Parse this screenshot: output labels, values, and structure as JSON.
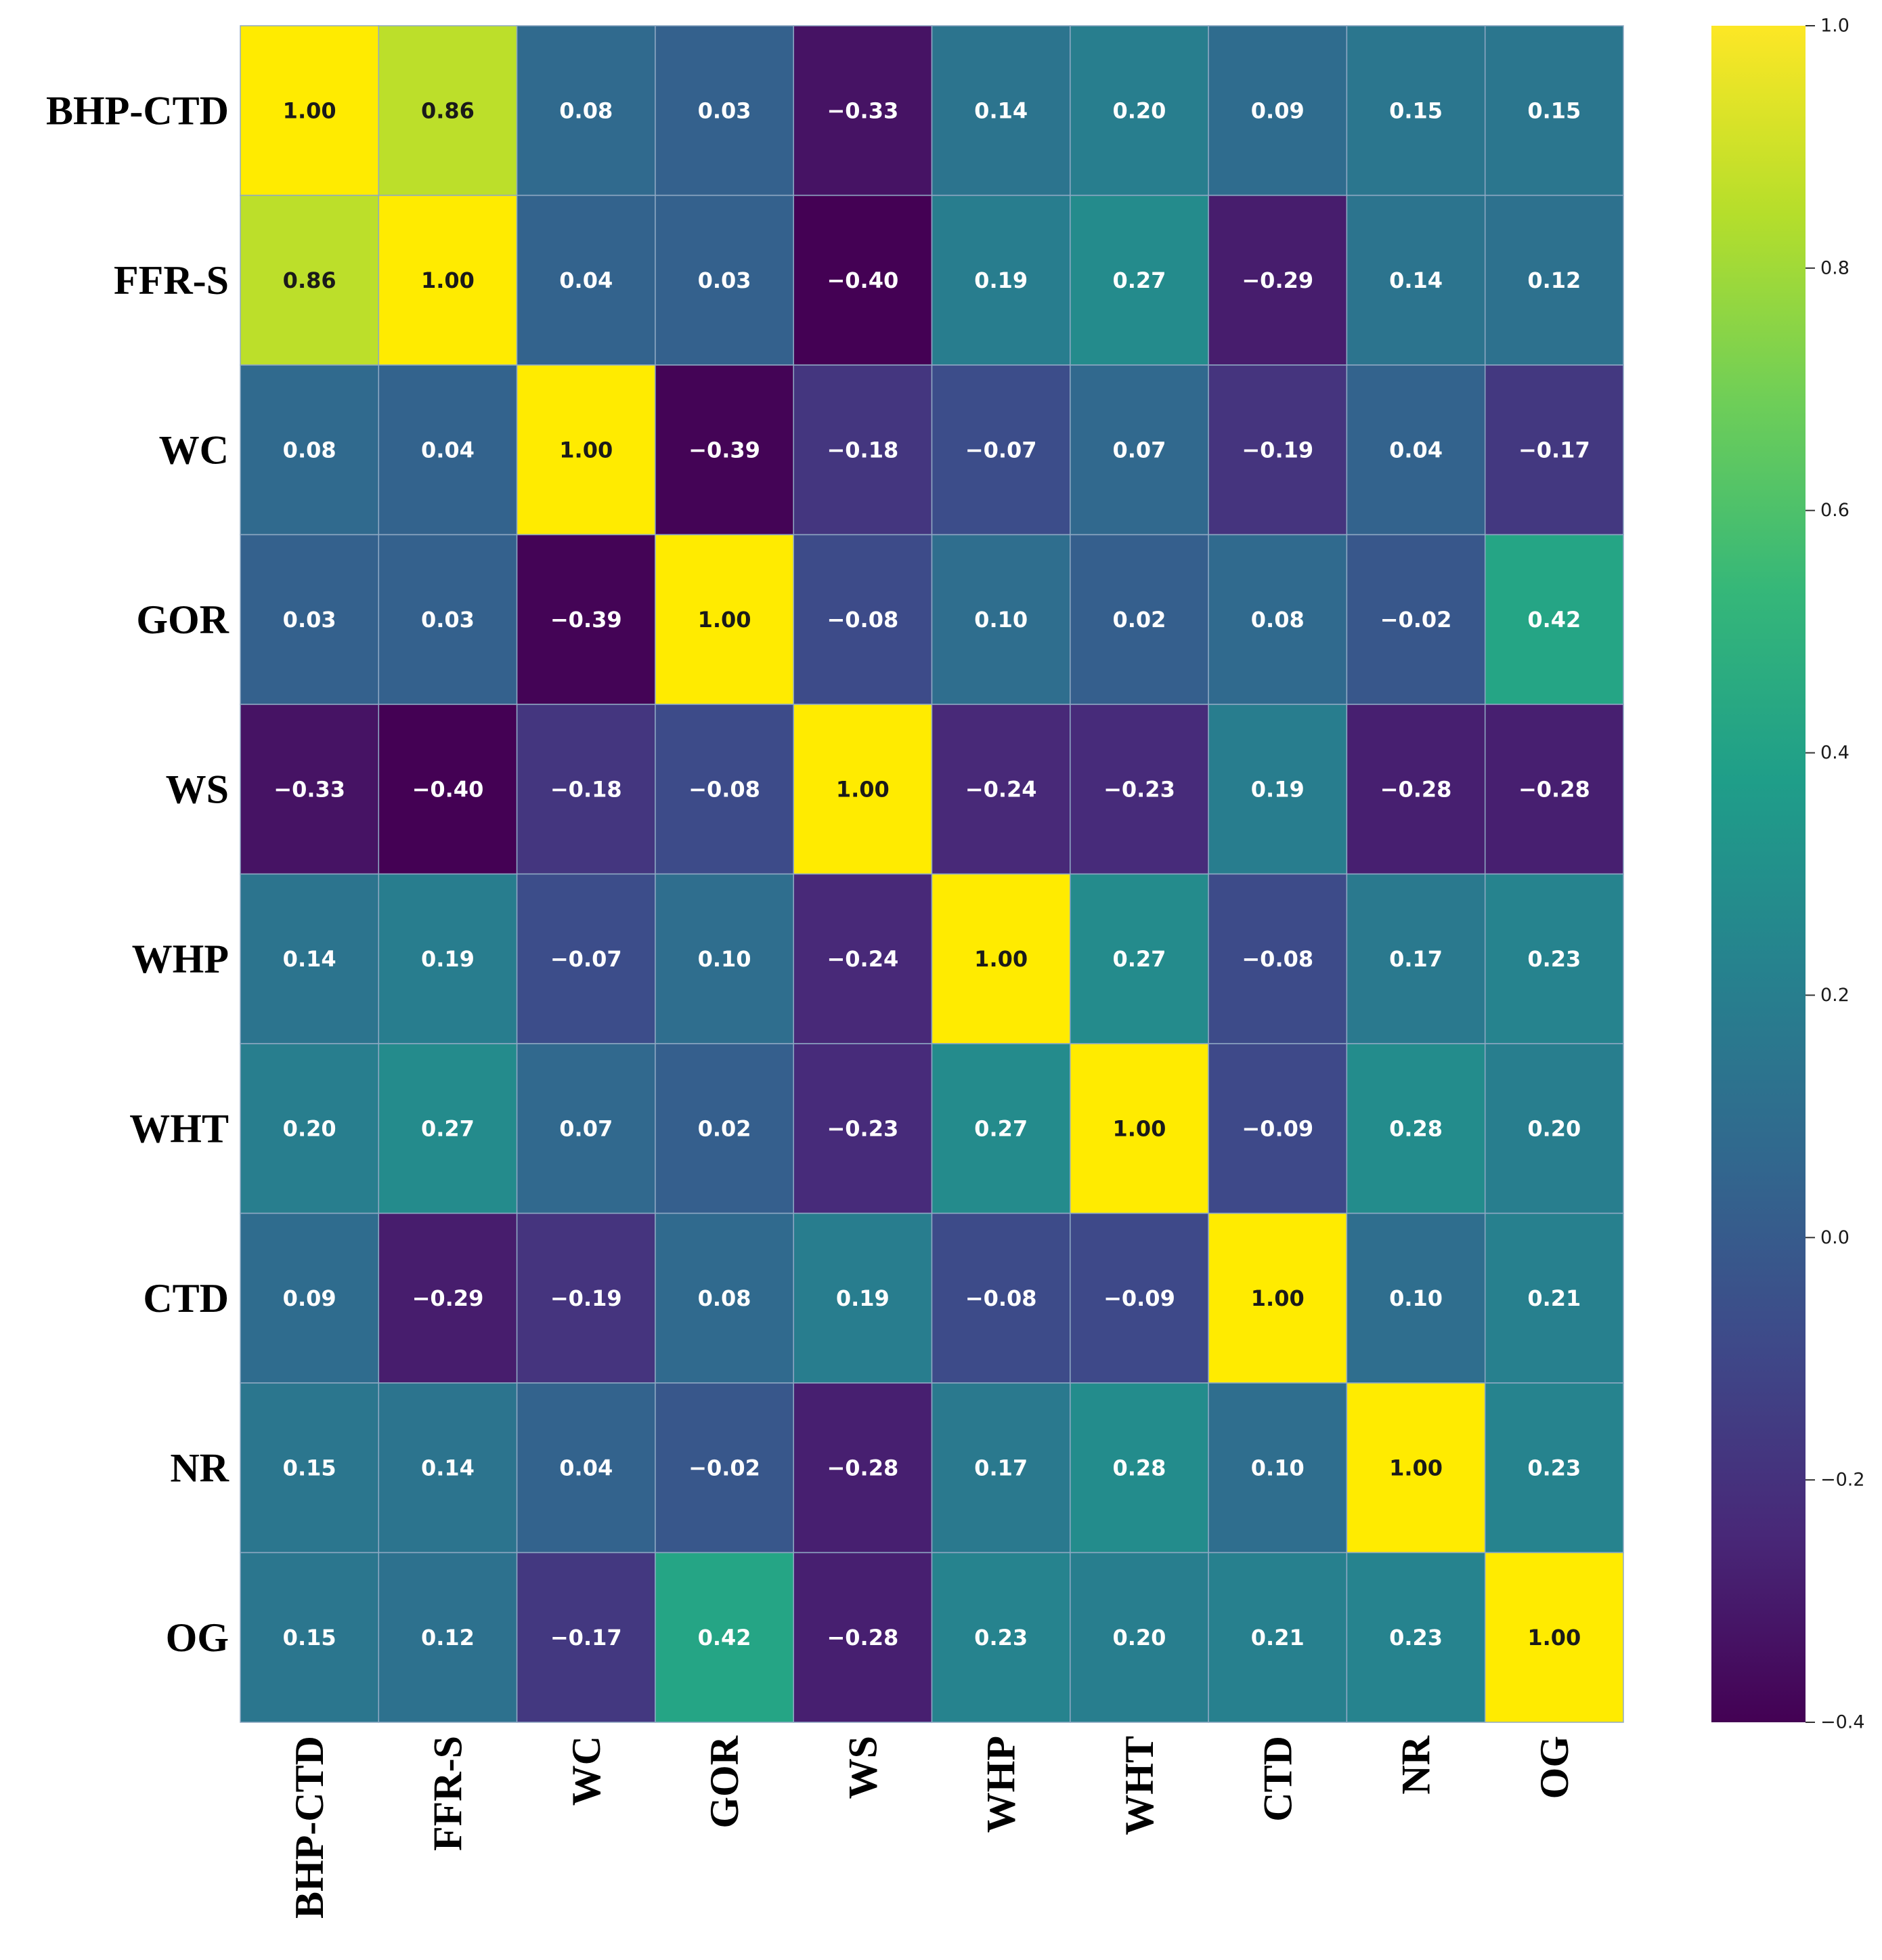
{
  "chart_data": {
    "type": "heatmap",
    "title": "",
    "labels": [
      "BHP-CTD",
      "FFR-S",
      "WC",
      "GOR",
      "WS",
      "WHP",
      "WHT",
      "CTD",
      "NR",
      "OG"
    ],
    "matrix": [
      [
        1.0,
        0.86,
        0.08,
        0.03,
        -0.33,
        0.14,
        0.2,
        0.09,
        0.15,
        0.15
      ],
      [
        0.86,
        1.0,
        0.04,
        0.03,
        -0.4,
        0.19,
        0.27,
        -0.29,
        0.14,
        0.12
      ],
      [
        0.08,
        0.04,
        1.0,
        -0.39,
        -0.18,
        -0.07,
        0.07,
        -0.19,
        0.04,
        -0.17
      ],
      [
        0.03,
        0.03,
        -0.39,
        1.0,
        -0.08,
        0.1,
        0.02,
        0.08,
        -0.02,
        0.42
      ],
      [
        -0.33,
        -0.4,
        -0.18,
        -0.08,
        1.0,
        -0.24,
        -0.23,
        0.19,
        -0.28,
        -0.28
      ],
      [
        0.14,
        0.19,
        -0.07,
        0.1,
        -0.24,
        1.0,
        0.27,
        -0.08,
        0.17,
        0.23
      ],
      [
        0.2,
        0.27,
        0.07,
        0.02,
        -0.23,
        0.27,
        1.0,
        -0.09,
        0.28,
        0.2
      ],
      [
        0.09,
        -0.29,
        -0.19,
        0.08,
        0.19,
        -0.08,
        -0.09,
        1.0,
        0.1,
        0.21
      ],
      [
        0.15,
        0.14,
        0.04,
        -0.02,
        -0.28,
        0.17,
        0.28,
        0.1,
        1.0,
        0.23
      ],
      [
        0.15,
        0.12,
        -0.17,
        0.42,
        -0.28,
        0.23,
        0.2,
        0.21,
        0.23,
        1.0
      ]
    ],
    "value_format": "2 decimals, minus sign as −",
    "colormap": "viridis",
    "colorbar": {
      "range": [
        -0.4,
        1.0
      ],
      "ticks": [
        1.0,
        0.8,
        0.6,
        0.4,
        0.2,
        0.0,
        -0.2,
        -0.4
      ],
      "tick_labels": [
        "1.0",
        "0.8",
        "0.6",
        "0.4",
        "0.2",
        "0.0",
        "−0.2",
        "−0.4"
      ]
    },
    "xlabel": "",
    "ylabel": ""
  },
  "colors": {
    "viridis_stops": [
      "#440154",
      "#482878",
      "#3e4989",
      "#31688e",
      "#26828e",
      "#1f9e89",
      "#35b779",
      "#6ece58",
      "#b5de2b",
      "#fde725"
    ],
    "diagonal_yellow": "#ffeb00",
    "label_color": "#000000",
    "cell_text_light": "#ffffff",
    "cell_text_dark": "#1a1a1a",
    "grid_line": "#8fa9c4"
  }
}
